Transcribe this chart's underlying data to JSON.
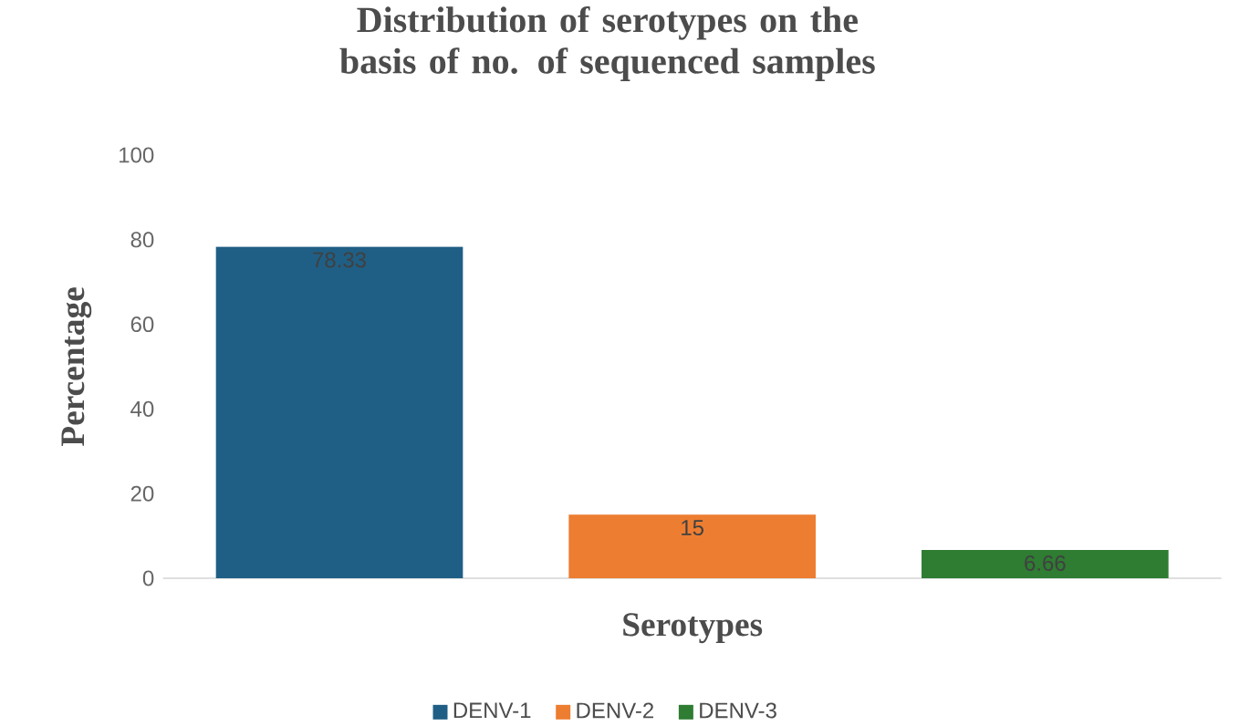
{
  "chart_data": {
    "type": "bar",
    "title": "Distribution of serotypes on the basis of no. of sequenced samples",
    "xlabel": "Serotypes",
    "ylabel": "Percentage",
    "categories": [
      null,
      null,
      null
    ],
    "series": [
      {
        "name": "DENV-1",
        "color": "#1f5f85",
        "values": [
          78.33,
          null,
          null
        ]
      },
      {
        "name": "DENV-2",
        "color": "#ed7d31",
        "values": [
          null,
          15,
          null
        ]
      },
      {
        "name": "DENV-3",
        "color": "#2e7d32",
        "values": [
          null,
          null,
          6.66
        ]
      }
    ],
    "ylim": [
      0,
      100
    ],
    "yticks": [
      0,
      20,
      40,
      60,
      80,
      100
    ],
    "grid": false,
    "legend": "bottom",
    "data_labels": true
  }
}
